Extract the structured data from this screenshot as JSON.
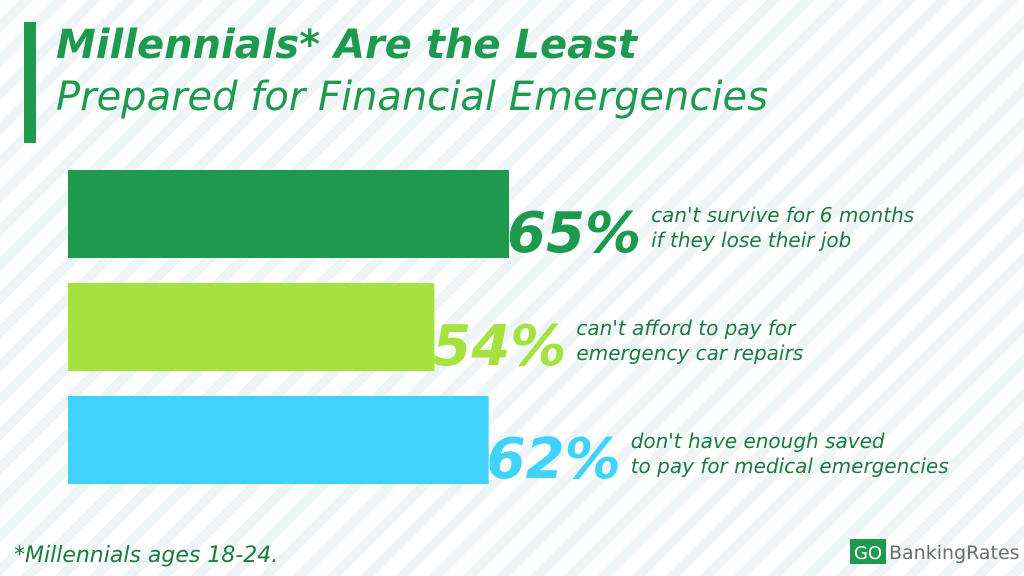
{
  "chart_data": {
    "type": "hbar",
    "title_lines": [
      "Millennials* Are the Least",
      "Prepared for Financial Emergencies"
    ],
    "categories": [
      [
        "can't survive for 6 months",
        "if they lose their job"
      ],
      [
        "can't afford to pay for",
        "emergency car repairs"
      ],
      [
        "don't have enough saved",
        "to pay for medical emergencies"
      ]
    ],
    "values": [
      65,
      54,
      62
    ],
    "value_labels": [
      "65%",
      "54%",
      "62%"
    ],
    "colors": [
      "#1e9a4e",
      "#a6e23e",
      "#3fd2fb"
    ],
    "footnote": "*Millennials ages 18-24.",
    "logo": [
      "GO",
      "BankingRates"
    ]
  }
}
